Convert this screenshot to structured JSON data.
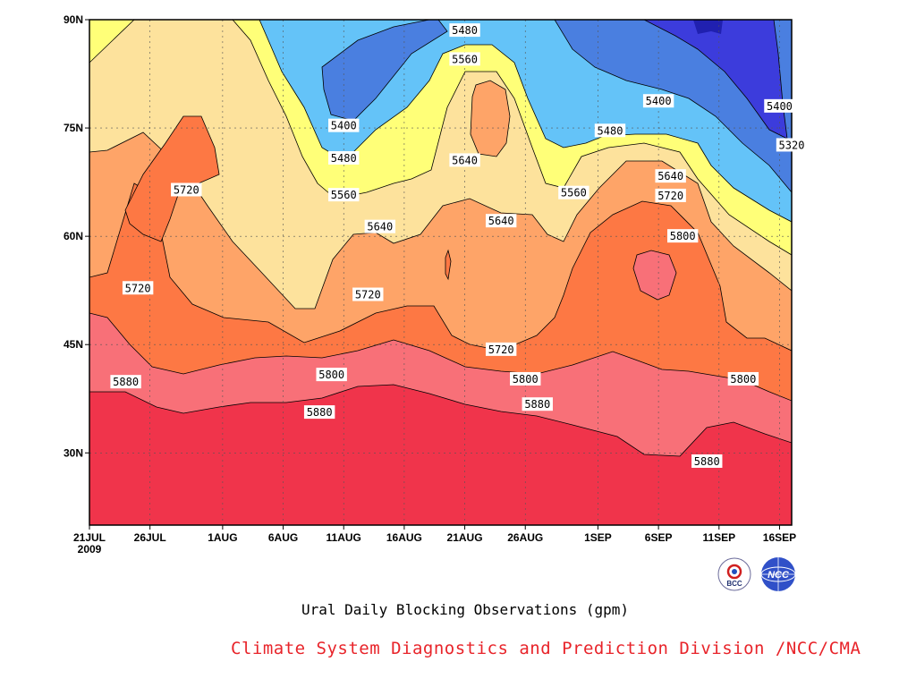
{
  "chart_data": {
    "type": "contour",
    "title": "Ural Daily Blocking Observations (gpm)",
    "x_ticks": [
      {
        "label": "21JUL",
        "sub": "2009",
        "day": 0
      },
      {
        "label": "26JUL",
        "day": 5
      },
      {
        "label": "1AUG",
        "day": 11
      },
      {
        "label": "6AUG",
        "day": 16
      },
      {
        "label": "11AUG",
        "day": 21
      },
      {
        "label": "16AUG",
        "day": 26
      },
      {
        "label": "21AUG",
        "day": 31
      },
      {
        "label": "26AUG",
        "day": 36
      },
      {
        "label": "1SEP",
        "day": 42
      },
      {
        "label": "6SEP",
        "day": 47
      },
      {
        "label": "11SEP",
        "day": 52
      },
      {
        "label": "16SEP",
        "day": 57
      }
    ],
    "y_ticks": [
      "30N",
      "45N",
      "60N",
      "75N",
      "90N"
    ],
    "y_tick_values": [
      30,
      45,
      60,
      75,
      90
    ],
    "ylim": [
      20,
      90
    ],
    "contour_levels": [
      5320,
      5400,
      5480,
      5560,
      5640,
      5720,
      5800,
      5880
    ],
    "contour_labels": [
      {
        "text": "5480",
        "day": 31,
        "lat": 88.5
      },
      {
        "text": "5560",
        "day": 31,
        "lat": 84.5
      },
      {
        "text": "5400",
        "day": 21,
        "lat": 75.3
      },
      {
        "text": "5480",
        "day": 21,
        "lat": 70.8
      },
      {
        "text": "5560",
        "day": 21,
        "lat": 65.7
      },
      {
        "text": "5640",
        "day": 31,
        "lat": 70.5
      },
      {
        "text": "5640",
        "day": 24,
        "lat": 61.3
      },
      {
        "text": "5640",
        "day": 34,
        "lat": 62.1
      },
      {
        "text": "5720",
        "day": 8,
        "lat": 66.4
      },
      {
        "text": "5720",
        "day": 4,
        "lat": 52.8
      },
      {
        "text": "5720",
        "day": 23,
        "lat": 51.9
      },
      {
        "text": "5720",
        "day": 34,
        "lat": 44.3
      },
      {
        "text": "5720",
        "day": 48,
        "lat": 65.6
      },
      {
        "text": "5880",
        "day": 3,
        "lat": 39.8
      },
      {
        "text": "5800",
        "day": 20,
        "lat": 40.8
      },
      {
        "text": "5880",
        "day": 19,
        "lat": 35.6
      },
      {
        "text": "5800",
        "day": 36,
        "lat": 40.2
      },
      {
        "text": "5880",
        "day": 37,
        "lat": 36.7
      },
      {
        "text": "5400",
        "day": 47,
        "lat": 78.7
      },
      {
        "text": "5480",
        "day": 43,
        "lat": 74.6
      },
      {
        "text": "5560",
        "day": 40,
        "lat": 66.0
      },
      {
        "text": "5640",
        "day": 48,
        "lat": 68.3
      },
      {
        "text": "5800",
        "day": 49,
        "lat": 60.0
      },
      {
        "text": "5400",
        "day": 57,
        "lat": 78.0
      },
      {
        "text": "5320",
        "day": 58,
        "lat": 72.6
      },
      {
        "text": "5800",
        "day": 54,
        "lat": 40.2
      },
      {
        "text": "5880",
        "day": 51,
        "lat": 28.8
      }
    ],
    "colors": {
      "5320": "#3c3cdc",
      "5400": "#4a7fe0",
      "5480": "#64c3f8",
      "5560": "#ffff78",
      "5640": "#fde29c",
      "5720": "#fea468",
      "5800": "#fd7844",
      "5880": "#f87078",
      "above": "#f0344b"
    }
  },
  "footer": {
    "title": "Ural Daily Blocking Observations (gpm)",
    "credit": "Climate System Diagnostics and Prediction Division /NCC/CMA",
    "logo_left": "BCC",
    "logo_right": "NCC"
  }
}
